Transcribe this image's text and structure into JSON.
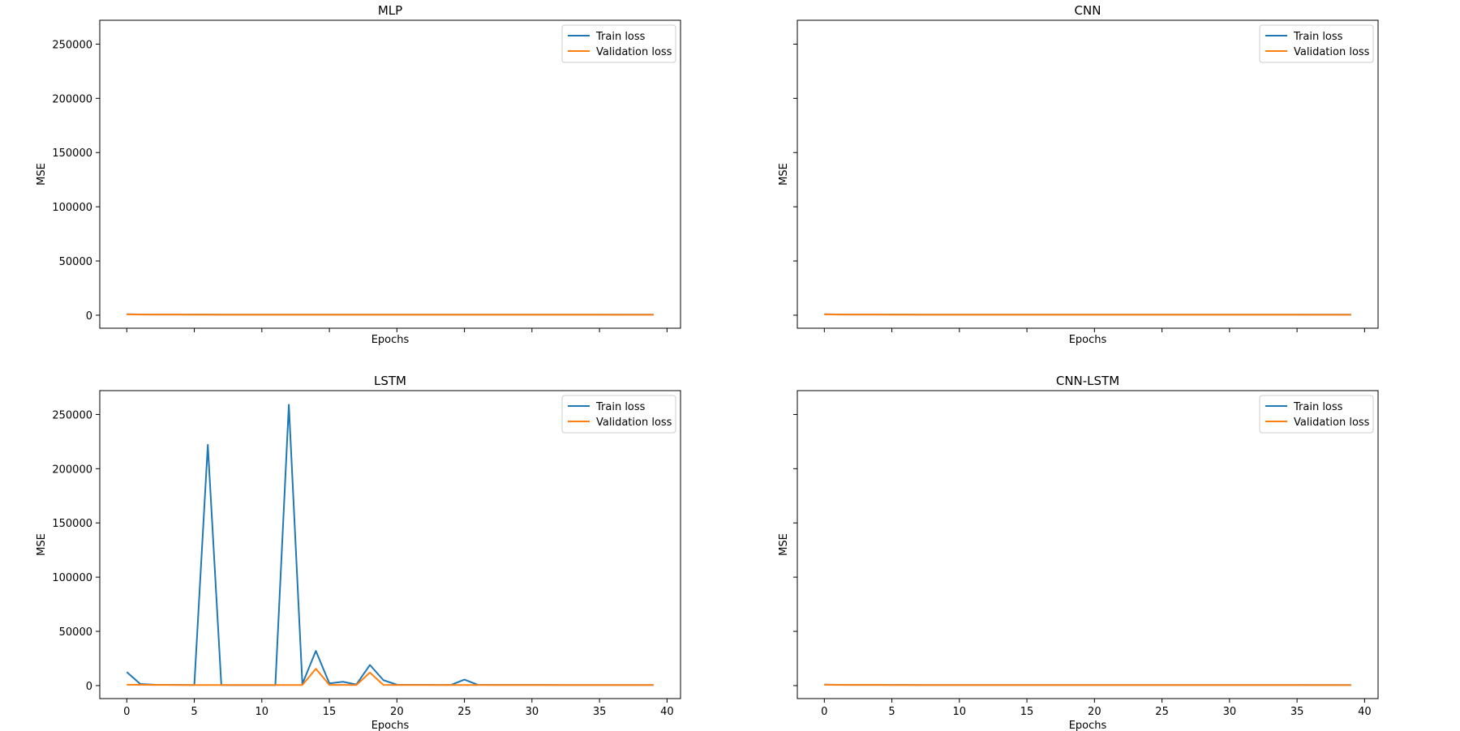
{
  "chart_data": [
    {
      "type": "line",
      "title": "MLP",
      "xlabel": "Epochs",
      "ylabel": "MSE",
      "xlim": [
        -2,
        41
      ],
      "ylim": [
        -12000,
        272000
      ],
      "xticks": [
        0,
        5,
        10,
        15,
        20,
        25,
        30,
        35,
        40
      ],
      "yticks": [
        0,
        50000,
        100000,
        150000,
        200000,
        250000
      ],
      "show_xtick_labels": false,
      "show_ytick_labels": true,
      "legend": "top-right",
      "x": [
        0,
        1,
        2,
        3,
        4,
        5,
        6,
        7,
        8,
        9,
        10,
        11,
        12,
        13,
        14,
        15,
        16,
        17,
        18,
        19,
        20,
        21,
        22,
        23,
        24,
        25,
        26,
        27,
        28,
        29,
        30,
        31,
        32,
        33,
        34,
        35,
        36,
        37,
        38,
        39
      ],
      "series": [
        {
          "name": "Train loss",
          "color": "#1f77b4",
          "values": [
            900,
            700,
            650,
            600,
            600,
            580,
            570,
            560,
            550,
            550,
            540,
            540,
            530,
            530,
            520,
            520,
            520,
            510,
            510,
            510,
            500,
            500,
            500,
            500,
            500,
            490,
            490,
            490,
            490,
            490,
            480,
            480,
            480,
            480,
            480,
            480,
            470,
            470,
            470,
            470
          ]
        },
        {
          "name": "Validation loss",
          "color": "#ff7f0e",
          "values": [
            800,
            650,
            600,
            580,
            570,
            560,
            550,
            540,
            540,
            530,
            530,
            520,
            520,
            510,
            510,
            510,
            500,
            500,
            500,
            500,
            490,
            490,
            490,
            490,
            490,
            480,
            480,
            480,
            480,
            480,
            470,
            470,
            470,
            470,
            470,
            470,
            460,
            460,
            460,
            460
          ]
        }
      ]
    },
    {
      "type": "line",
      "title": "CNN",
      "xlabel": "Epochs",
      "ylabel": "MSE",
      "xlim": [
        -2,
        41
      ],
      "ylim": [
        -12000,
        272000
      ],
      "xticks": [
        0,
        5,
        10,
        15,
        20,
        25,
        30,
        35,
        40
      ],
      "yticks": [
        0,
        50000,
        100000,
        150000,
        200000,
        250000
      ],
      "show_xtick_labels": false,
      "show_ytick_labels": false,
      "legend": "top-right",
      "x": [
        0,
        1,
        2,
        3,
        4,
        5,
        6,
        7,
        8,
        9,
        10,
        11,
        12,
        13,
        14,
        15,
        16,
        17,
        18,
        19,
        20,
        21,
        22,
        23,
        24,
        25,
        26,
        27,
        28,
        29,
        30,
        31,
        32,
        33,
        34,
        35,
        36,
        37,
        38,
        39
      ],
      "series": [
        {
          "name": "Train loss",
          "color": "#1f77b4",
          "values": [
            900,
            700,
            650,
            600,
            600,
            580,
            570,
            560,
            550,
            550,
            540,
            540,
            530,
            530,
            520,
            520,
            520,
            510,
            510,
            510,
            500,
            500,
            500,
            500,
            500,
            490,
            490,
            490,
            490,
            490,
            480,
            480,
            480,
            480,
            480,
            480,
            470,
            470,
            470,
            470
          ]
        },
        {
          "name": "Validation loss",
          "color": "#ff7f0e",
          "values": [
            800,
            650,
            600,
            580,
            570,
            560,
            550,
            540,
            540,
            530,
            530,
            520,
            520,
            510,
            510,
            510,
            500,
            500,
            500,
            500,
            490,
            490,
            490,
            490,
            490,
            480,
            480,
            480,
            480,
            480,
            470,
            470,
            470,
            470,
            470,
            470,
            460,
            460,
            460,
            460
          ]
        }
      ]
    },
    {
      "type": "line",
      "title": "LSTM",
      "xlabel": "Epochs",
      "ylabel": "MSE",
      "xlim": [
        -2,
        41
      ],
      "ylim": [
        -12000,
        272000
      ],
      "xticks": [
        0,
        5,
        10,
        15,
        20,
        25,
        30,
        35,
        40
      ],
      "yticks": [
        0,
        50000,
        100000,
        150000,
        200000,
        250000
      ],
      "show_xtick_labels": true,
      "show_ytick_labels": true,
      "legend": "top-right",
      "x": [
        0,
        1,
        2,
        3,
        4,
        5,
        6,
        7,
        8,
        9,
        10,
        11,
        12,
        13,
        14,
        15,
        16,
        17,
        18,
        19,
        20,
        21,
        22,
        23,
        24,
        25,
        26,
        27,
        28,
        29,
        30,
        31,
        32,
        33,
        34,
        35,
        36,
        37,
        38,
        39
      ],
      "series": [
        {
          "name": "Train loss",
          "color": "#1f77b4",
          "values": [
            12500,
            1500,
            800,
            700,
            600,
            500,
            222000,
            500,
            400,
            400,
            400,
            400,
            259000,
            1500,
            32000,
            2000,
            3500,
            1000,
            19000,
            5000,
            800,
            700,
            700,
            600,
            600,
            5500,
            700,
            600,
            600,
            600,
            600,
            600,
            500,
            500,
            500,
            500,
            500,
            500,
            500,
            500
          ]
        },
        {
          "name": "Validation loss",
          "color": "#ff7f0e",
          "values": [
            800,
            700,
            600,
            600,
            550,
            550,
            550,
            500,
            500,
            500,
            500,
            500,
            500,
            500,
            15500,
            600,
            600,
            500,
            12000,
            600,
            500,
            500,
            500,
            500,
            500,
            500,
            500,
            500,
            500,
            500,
            500,
            500,
            500,
            500,
            500,
            500,
            500,
            500,
            500,
            500
          ]
        }
      ]
    },
    {
      "type": "line",
      "title": "CNN-LSTM",
      "xlabel": "Epochs",
      "ylabel": "MSE",
      "xlim": [
        -2,
        41
      ],
      "ylim": [
        -12000,
        272000
      ],
      "xticks": [
        0,
        5,
        10,
        15,
        20,
        25,
        30,
        35,
        40
      ],
      "yticks": [
        0,
        50000,
        100000,
        150000,
        200000,
        250000
      ],
      "show_xtick_labels": true,
      "show_ytick_labels": false,
      "legend": "top-right",
      "x": [
        0,
        1,
        2,
        3,
        4,
        5,
        6,
        7,
        8,
        9,
        10,
        11,
        12,
        13,
        14,
        15,
        16,
        17,
        18,
        19,
        20,
        21,
        22,
        23,
        24,
        25,
        26,
        27,
        28,
        29,
        30,
        31,
        32,
        33,
        34,
        35,
        36,
        37,
        38,
        39
      ],
      "series": [
        {
          "name": "Train loss",
          "color": "#1f77b4",
          "values": [
            900,
            700,
            650,
            600,
            600,
            580,
            570,
            560,
            550,
            550,
            540,
            540,
            530,
            530,
            520,
            520,
            520,
            510,
            510,
            510,
            500,
            500,
            500,
            500,
            500,
            490,
            490,
            490,
            490,
            490,
            480,
            480,
            480,
            480,
            480,
            480,
            470,
            470,
            470,
            470
          ]
        },
        {
          "name": "Validation loss",
          "color": "#ff7f0e",
          "values": [
            800,
            650,
            600,
            580,
            570,
            560,
            550,
            540,
            540,
            530,
            530,
            520,
            520,
            510,
            510,
            510,
            500,
            500,
            500,
            500,
            490,
            490,
            490,
            490,
            490,
            480,
            480,
            480,
            480,
            480,
            470,
            470,
            470,
            470,
            470,
            470,
            460,
            460,
            460,
            460
          ]
        }
      ]
    }
  ]
}
